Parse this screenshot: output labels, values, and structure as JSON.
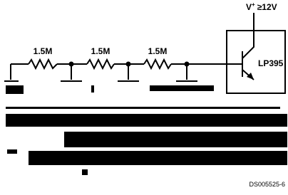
{
  "supply": {
    "symbol": "V",
    "superscript": "+",
    "condition": "≥12V"
  },
  "resistors": [
    {
      "label": "1.5M"
    },
    {
      "label": "1.5M"
    },
    {
      "label": "1.5M"
    }
  ],
  "device": {
    "label": "LP395"
  },
  "figure_id": "DS005525-6"
}
